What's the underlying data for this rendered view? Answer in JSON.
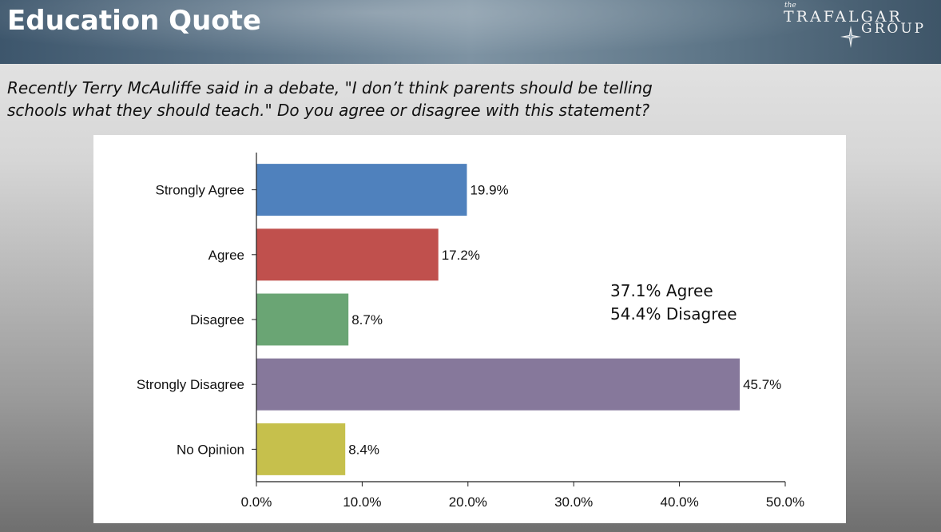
{
  "header": {
    "title": "Education Quote",
    "logo": {
      "prefix": "the",
      "line1": "TRAFALGAR",
      "line2": "GROUP",
      "icon": "compass-star-icon"
    }
  },
  "question": "Recently Terry McAuliffe said in a debate, \"I don’t think parents should be telling schools what they should teach.\" Do you agree or disagree with this statement?",
  "summary": [
    "37.1% Agree",
    "54.4% Disagree"
  ],
  "chart_data": {
    "type": "bar",
    "orientation": "horizontal",
    "categories": [
      "Strongly Agree",
      "Agree",
      "Disagree",
      "Strongly Disagree",
      "No Opinion"
    ],
    "values": [
      19.9,
      17.2,
      8.7,
      45.7,
      8.4
    ],
    "value_labels": [
      "19.9%",
      "17.2%",
      "8.7%",
      "45.7%",
      "8.4%"
    ],
    "colors": [
      "#4f81bd",
      "#c0504d",
      "#6aa574",
      "#86789b",
      "#c6c04c"
    ],
    "xlim": [
      0,
      50
    ],
    "xticks": [
      0,
      10,
      20,
      30,
      40,
      50
    ],
    "xtick_labels": [
      "0.0%",
      "10.0%",
      "20.0%",
      "30.0%",
      "40.0%",
      "50.0%"
    ],
    "title": "",
    "xlabel": "",
    "ylabel": "",
    "grid": false,
    "legend": "none"
  }
}
